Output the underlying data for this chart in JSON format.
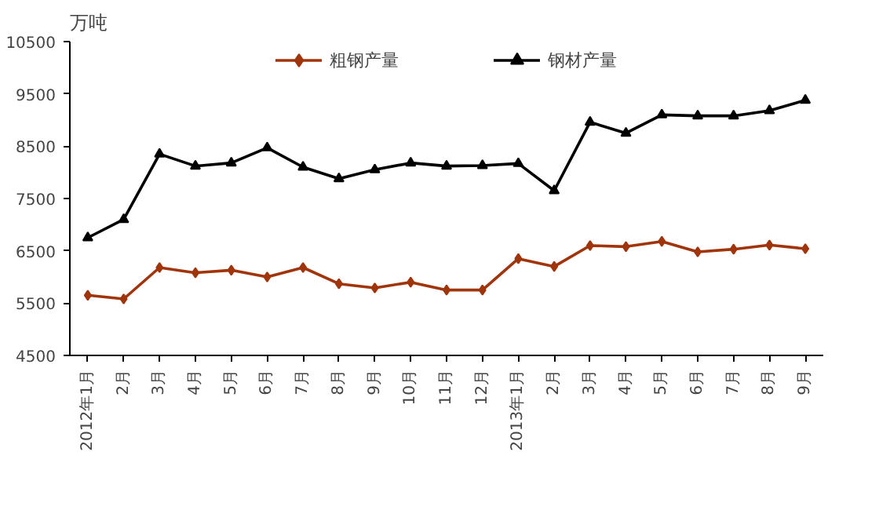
{
  "chart_data": {
    "type": "line",
    "ylabel": "万吨",
    "categories": [
      "2012年1月",
      "2月",
      "3月",
      "4月",
      "5月",
      "6月",
      "7月",
      "8月",
      "9月",
      "10月",
      "11月",
      "12月",
      "2013年1月",
      "2月",
      "3月",
      "4月",
      "5月",
      "6月",
      "7月",
      "8月",
      "9月"
    ],
    "series": [
      {
        "name": "粗钢产量",
        "color": "#a0340a",
        "marker": "diamond",
        "values": [
          5650,
          5580,
          6180,
          6080,
          6130,
          6000,
          6180,
          5870,
          5790,
          5900,
          5750,
          5750,
          6350,
          6200,
          6600,
          6580,
          6680,
          6480,
          6530,
          6610,
          6540
        ]
      },
      {
        "name": "钢材产量",
        "color": "#000000",
        "marker": "triangle",
        "values": [
          6750,
          7100,
          8350,
          8120,
          8180,
          8470,
          8100,
          7880,
          8050,
          8180,
          8120,
          8130,
          8170,
          7650,
          8960,
          8750,
          9100,
          9080,
          9080,
          9180,
          9380
        ]
      }
    ],
    "ylim": [
      4500,
      10500
    ],
    "yticks": [
      4500,
      5500,
      6500,
      7500,
      8500,
      9500,
      10500
    ],
    "grid": false,
    "legend": "top",
    "line_style": "solid"
  }
}
